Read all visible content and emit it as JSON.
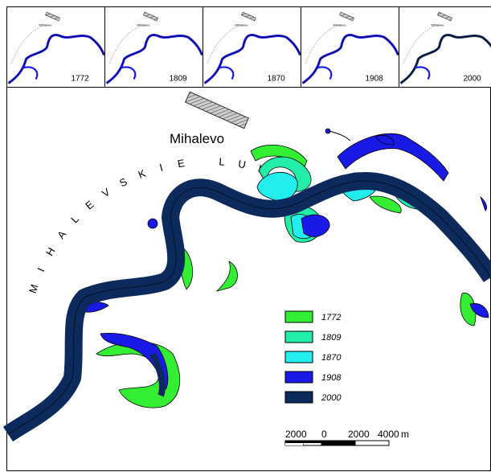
{
  "town": "Mihalevo",
  "region_label": "MIHALEVSKIE LUKI",
  "thumbnails": [
    {
      "year": "1772",
      "town": "Mihalevo"
    },
    {
      "year": "1809",
      "town": "Mihalevo"
    },
    {
      "year": "1870",
      "town": "Mihalevo"
    },
    {
      "year": "1908",
      "town": "Mihalevo"
    },
    {
      "year": "2000",
      "town": "Mihalevo"
    }
  ],
  "legend": [
    {
      "year": "1772",
      "color": "#33ee33"
    },
    {
      "year": "1809",
      "color": "#22eeaa"
    },
    {
      "year": "1870",
      "color": "#22eeee"
    },
    {
      "year": "1908",
      "color": "#1a1ae6"
    },
    {
      "year": "2000",
      "color": "#0d2a5c"
    }
  ],
  "scale": {
    "labels": [
      "2000",
      "0",
      "2000",
      "4000"
    ],
    "unit": "m"
  }
}
